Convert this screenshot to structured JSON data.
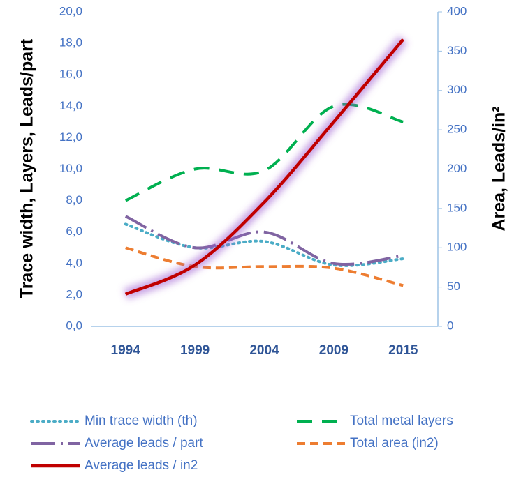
{
  "chart_data": {
    "type": "line",
    "y_label": "Trace width, Layers, Leads/part",
    "y2_label": "Area, Leads/in²",
    "categories": [
      "1994",
      "1999",
      "2004",
      "2009",
      "2015"
    ],
    "ylim": [
      0,
      20
    ],
    "yticks": [
      {
        "value": 0,
        "label": "0,0"
      },
      {
        "value": 2,
        "label": "2,0"
      },
      {
        "value": 4,
        "label": "4,0"
      },
      {
        "value": 6,
        "label": "6,0"
      },
      {
        "value": 8,
        "label": "8,0"
      },
      {
        "value": 10,
        "label": "10,0"
      },
      {
        "value": 12,
        "label": "12,0"
      },
      {
        "value": 14,
        "label": "14,0"
      },
      {
        "value": 16,
        "label": "16,0"
      },
      {
        "value": 18,
        "label": "18,0"
      },
      {
        "value": 20,
        "label": "20,0"
      }
    ],
    "y2lim": [
      0,
      400
    ],
    "y2ticks": [
      0,
      50,
      100,
      150,
      200,
      250,
      300,
      350,
      400
    ],
    "series": [
      {
        "name": "Min trace width (th)",
        "color": "#4bacc6",
        "values": [
          6.5,
          5.0,
          5.4,
          3.9,
          4.3
        ]
      },
      {
        "name": "Total metal layers",
        "color": "#00b050",
        "values": [
          8.0,
          10.0,
          9.9,
          14.0,
          13.0
        ]
      },
      {
        "name": "Average leads / part",
        "color": "#8064a2",
        "values": [
          7.0,
          5.0,
          6.0,
          4.0,
          4.5
        ]
      },
      {
        "name": "Total area (in2)",
        "color": "#ed7d31",
        "values": [
          5.0,
          3.8,
          3.8,
          3.7,
          2.6
        ]
      },
      {
        "name": "Average leads / in2",
        "color": "#c00000",
        "axis": "y2",
        "values": [
          41,
          78,
          158,
          260,
          365
        ]
      }
    ]
  }
}
